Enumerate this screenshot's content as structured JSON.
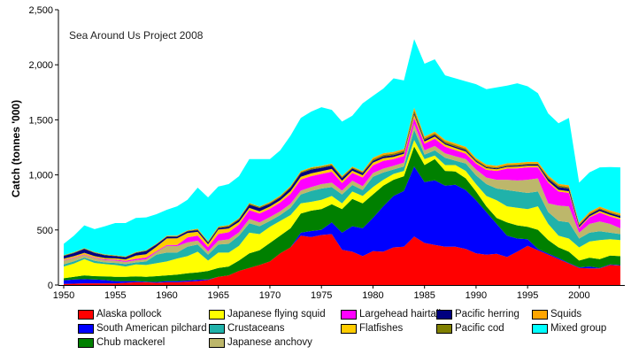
{
  "chart_data": {
    "type": "area",
    "stacked": true,
    "annotation": "Sea Around Us Project 2008",
    "xlabel": "",
    "ylabel": "Catch (tonnes '000)",
    "xlim": [
      1950,
      2004
    ],
    "ylim": [
      0,
      2500
    ],
    "yticks": [
      0,
      500,
      1000,
      1500,
      2000,
      2500
    ],
    "ytick_labels": [
      "0",
      "500",
      "1,000",
      "1,500",
      "2,000",
      "2,500"
    ],
    "xticks": [
      1950,
      1955,
      1960,
      1965,
      1970,
      1975,
      1980,
      1985,
      1990,
      1995,
      2000
    ],
    "xtick_labels": [
      "1950",
      "1955",
      "1960",
      "1965",
      "1970",
      "1975",
      "1980",
      "1985",
      "1990",
      "1995",
      "2000"
    ],
    "grid": false,
    "legend_placement": "bottom",
    "x": [
      1950,
      1951,
      1952,
      1953,
      1954,
      1955,
      1956,
      1957,
      1958,
      1959,
      1960,
      1961,
      1962,
      1963,
      1964,
      1965,
      1966,
      1967,
      1968,
      1969,
      1970,
      1971,
      1972,
      1973,
      1974,
      1975,
      1976,
      1977,
      1978,
      1979,
      1980,
      1981,
      1982,
      1983,
      1984,
      1985,
      1986,
      1987,
      1988,
      1989,
      1990,
      1991,
      1992,
      1993,
      1994,
      1995,
      1996,
      1997,
      1998,
      1999,
      2000,
      2001,
      2002,
      2003,
      2004
    ],
    "series": [
      {
        "name": "Alaska pollock",
        "color": "#ff0000",
        "values": [
          10,
          12,
          15,
          15,
          15,
          15,
          20,
          25,
          25,
          20,
          25,
          25,
          30,
          35,
          45,
          75,
          88,
          128,
          155,
          182,
          214,
          288,
          342,
          448,
          435,
          454,
          462,
          320,
          302,
          262,
          307,
          302,
          342,
          347,
          440,
          382,
          363,
          347,
          347,
          328,
          288,
          275,
          283,
          254,
          302,
          355,
          315,
          275,
          235,
          195,
          155,
          150,
          150,
          182,
          176
        ]
      },
      {
        "name": "South American pilchard",
        "color": "#0000ff",
        "values": [
          33,
          38,
          38,
          35,
          30,
          20,
          15,
          10,
          5,
          7,
          10,
          10,
          10,
          13,
          5,
          0,
          0,
          0,
          0,
          0,
          0,
          0,
          0,
          27,
          55,
          48,
          107,
          155,
          232,
          253,
          302,
          413,
          467,
          507,
          636,
          552,
          587,
          555,
          563,
          534,
          481,
          387,
          272,
          194,
          120,
          61,
          13,
          10,
          10,
          5,
          5,
          18,
          5,
          5,
          5
        ]
      },
      {
        "name": "Chub mackerel",
        "color": "#008000",
        "values": [
          18,
          25,
          35,
          30,
          33,
          40,
          40,
          43,
          45,
          53,
          53,
          60,
          67,
          67,
          78,
          80,
          80,
          94,
          133,
          133,
          168,
          160,
          173,
          174,
          185,
          187,
          165,
          214,
          248,
          227,
          213,
          187,
          147,
          134,
          182,
          155,
          193,
          134,
          121,
          107,
          80,
          53,
          54,
          121,
          120,
          113,
          174,
          123,
          97,
          102,
          62,
          80,
          80,
          80,
          81
        ]
      },
      {
        "name": "Japanese flying squid",
        "color": "#ffff00",
        "values": [
          107,
          120,
          147,
          120,
          112,
          107,
          93,
          109,
          107,
          118,
          126,
          145,
          155,
          187,
          94,
          139,
          126,
          133,
          187,
          147,
          147,
          134,
          120,
          93,
          81,
          85,
          75,
          53,
          67,
          67,
          67,
          54,
          53,
          48,
          58,
          54,
          32,
          53,
          58,
          67,
          67,
          94,
          160,
          146,
          160,
          160,
          213,
          147,
          106,
          120,
          120,
          147,
          173,
          149,
          146
        ]
      },
      {
        "name": "Crustaceans",
        "color": "#20b2aa",
        "values": [
          19,
          20,
          13,
          20,
          15,
          18,
          22,
          18,
          32,
          77,
          80,
          54,
          85,
          66,
          53,
          74,
          80,
          93,
          85,
          72,
          53,
          53,
          67,
          80,
          98,
          102,
          80,
          80,
          59,
          53,
          93,
          66,
          40,
          40,
          94,
          40,
          48,
          67,
          40,
          67,
          80,
          107,
          107,
          147,
          147,
          147,
          134,
          107,
          134,
          147,
          80,
          80,
          81,
          59,
          54
        ]
      },
      {
        "name": "Japanese anchovy",
        "color": "#bdb76b",
        "values": [
          35,
          30,
          25,
          25,
          20,
          22,
          20,
          20,
          20,
          25,
          61,
          60,
          40,
          35,
          30,
          35,
          40,
          30,
          40,
          35,
          35,
          35,
          35,
          35,
          35,
          40,
          40,
          35,
          40,
          35,
          35,
          35,
          35,
          35,
          53,
          40,
          40,
          40,
          40,
          40,
          53,
          60,
          80,
          94,
          100,
          120,
          120,
          80,
          139,
          146,
          53,
          80,
          88,
          80,
          53
        ]
      },
      {
        "name": "Largehead hairtail",
        "color": "#ff00ff",
        "values": [
          5,
          5,
          5,
          5,
          8,
          8,
          10,
          12,
          15,
          8,
          8,
          10,
          45,
          45,
          40,
          60,
          65,
          70,
          80,
          80,
          75,
          80,
          90,
          100,
          100,
          93,
          100,
          70,
          70,
          80,
          70,
          70,
          60,
          60,
          54,
          60,
          65,
          60,
          55,
          50,
          54,
          70,
          80,
          101,
          110,
          112,
          99,
          187,
          128,
          121,
          40,
          59,
          80,
          67,
          80
        ]
      },
      {
        "name": "Flatfishes",
        "color": "#ffcc00",
        "values": [
          12,
          12,
          15,
          12,
          12,
          12,
          12,
          30,
          30,
          40,
          60,
          60,
          40,
          35,
          25,
          40,
          35,
          25,
          20,
          20,
          20,
          20,
          25,
          25,
          25,
          25,
          25,
          20,
          20,
          20,
          25,
          25,
          20,
          20,
          30,
          20,
          20,
          20,
          20,
          20,
          15,
          15,
          15,
          15,
          15,
          15,
          15,
          15,
          15,
          15,
          10,
          10,
          15,
          15,
          15
        ]
      },
      {
        "name": "Pacific herring",
        "color": "#000080",
        "values": [
          25,
          28,
          35,
          30,
          25,
          20,
          20,
          25,
          30,
          20,
          15,
          15,
          15,
          15,
          15,
          15,
          15,
          20,
          30,
          30,
          25,
          25,
          30,
          35,
          35,
          30,
          30,
          25,
          20,
          20,
          15,
          15,
          15,
          15,
          15,
          15,
          15,
          12,
          12,
          12,
          10,
          8,
          8,
          8,
          10,
          10,
          10,
          20,
          25,
          25,
          15,
          15,
          15,
          15,
          15
        ]
      },
      {
        "name": "Pacific cod",
        "color": "#808000",
        "values": [
          5,
          5,
          5,
          5,
          5,
          5,
          5,
          5,
          5,
          5,
          5,
          5,
          5,
          8,
          8,
          8,
          10,
          10,
          10,
          10,
          10,
          10,
          10,
          10,
          12,
          12,
          12,
          10,
          10,
          10,
          15,
          15,
          15,
          15,
          25,
          15,
          15,
          15,
          15,
          15,
          10,
          10,
          10,
          10,
          10,
          10,
          10,
          15,
          15,
          15,
          10,
          10,
          10,
          10,
          10
        ]
      },
      {
        "name": "Squids",
        "color": "#ffa500",
        "values": [
          3,
          3,
          3,
          3,
          3,
          3,
          3,
          3,
          3,
          3,
          5,
          5,
          5,
          5,
          5,
          5,
          5,
          5,
          5,
          5,
          8,
          8,
          8,
          8,
          8,
          8,
          8,
          8,
          8,
          8,
          15,
          15,
          15,
          15,
          25,
          15,
          15,
          15,
          15,
          15,
          15,
          15,
          15,
          15,
          15,
          15,
          15,
          15,
          15,
          15,
          15,
          15,
          15,
          15,
          15
        ]
      },
      {
        "name": "Mixed group",
        "color": "#00ffff",
        "values": [
          102,
          150,
          206,
          207,
          256,
          293,
          303,
          309,
          297,
          267,
          235,
          266,
          277,
          373,
          398,
          363,
          372,
          380,
          398,
          429,
          388,
          410,
          456,
          482,
          506,
          531,
          487,
          494,
          462,
          615,
          560,
          587,
          668,
          622,
          620,
          662,
          657,
          586,
          591,
          595,
          671,
          684,
          710,
          705,
          723,
          687,
          625,
          563,
          550,
          611,
          364,
          359,
          356,
          394,
          418
        ]
      }
    ]
  },
  "legend": [
    {
      "label": "Alaska pollock",
      "color": "#ff0000"
    },
    {
      "label": "Japanese flying squid",
      "color": "#ffff00"
    },
    {
      "label": "Largehead hairtail",
      "color": "#ff00ff"
    },
    {
      "label": "Pacific herring",
      "color": "#000080"
    },
    {
      "label": "Squids",
      "color": "#ffa500"
    },
    {
      "label": "South American pilchard",
      "color": "#0000ff"
    },
    {
      "label": "Crustaceans",
      "color": "#20b2aa"
    },
    {
      "label": "Flatfishes",
      "color": "#ffcc00"
    },
    {
      "label": "Pacific cod",
      "color": "#808000"
    },
    {
      "label": "Mixed group",
      "color": "#00ffff"
    },
    {
      "label": "Chub mackerel",
      "color": "#008000"
    },
    {
      "label": "Japanese anchovy",
      "color": "#bdb76b"
    }
  ]
}
